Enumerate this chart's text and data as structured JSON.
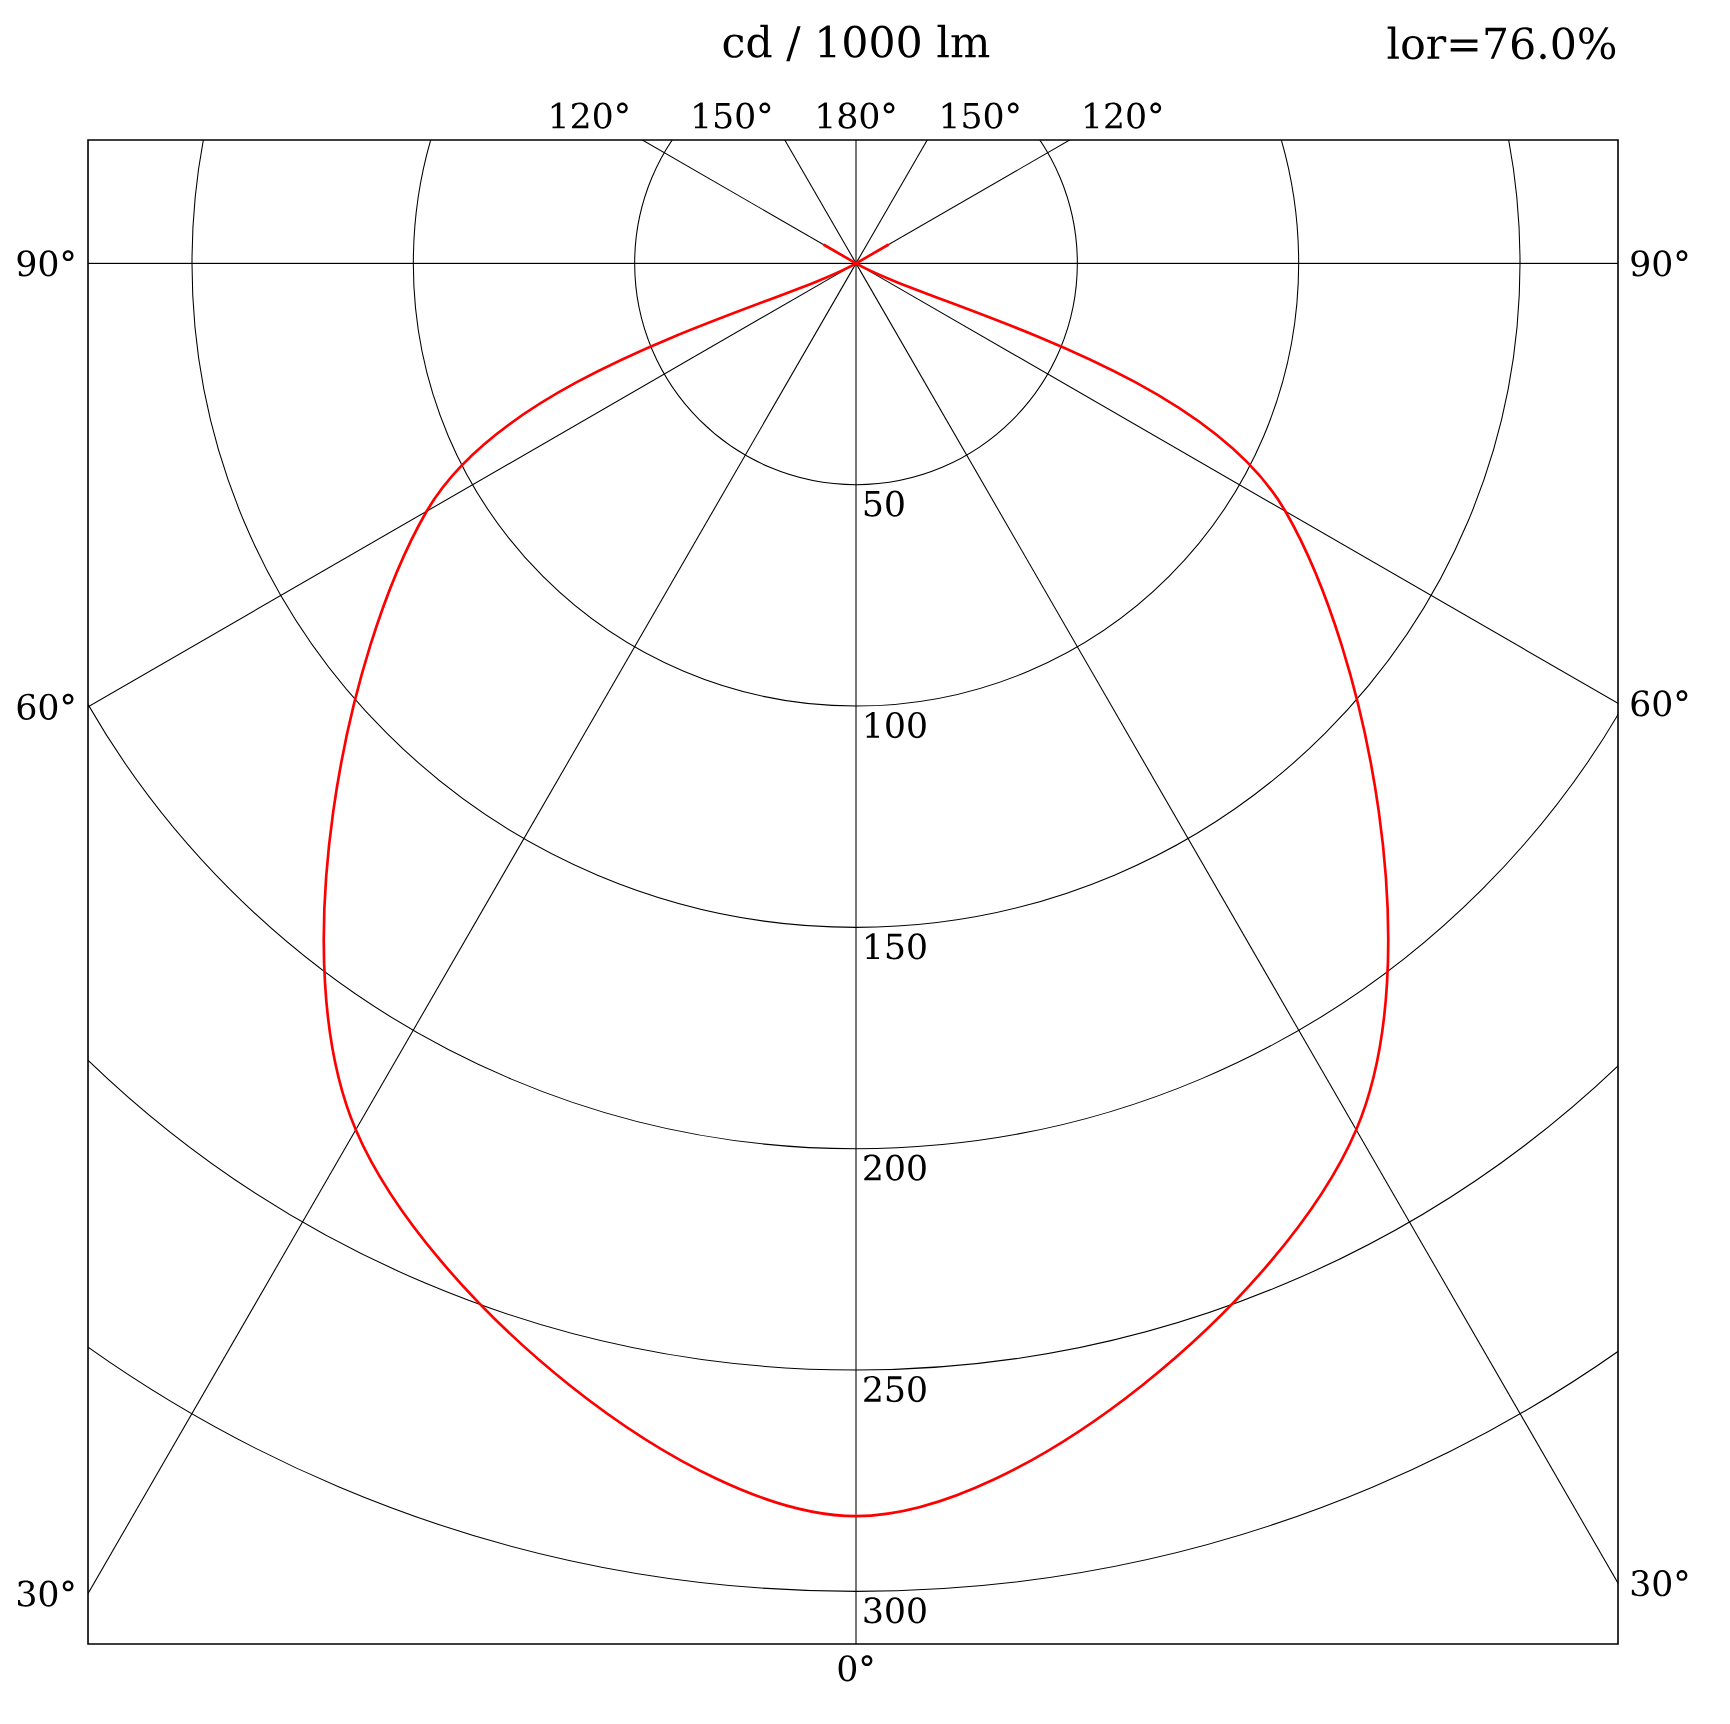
{
  "chart_data": {
    "type": "radar",
    "title": "cd / 1000 lm",
    "annotations": [
      "lor=76.0%"
    ],
    "categories": [
      "180°",
      "150°",
      "120°",
      "90°",
      "60°",
      "30°",
      "0°",
      "30°",
      "60°",
      "90°",
      "120°",
      "150°"
    ],
    "series": [
      {
        "color": "#ff0000",
        "values": [
          0,
          0,
          0,
          0,
          112,
          226,
          283,
          226,
          112,
          0,
          0,
          0
        ]
      }
    ],
    "ylim": [
      0,
      300
    ],
    "yticks": [
      50,
      100,
      150,
      200,
      250,
      300
    ],
    "grid": true
  }
}
